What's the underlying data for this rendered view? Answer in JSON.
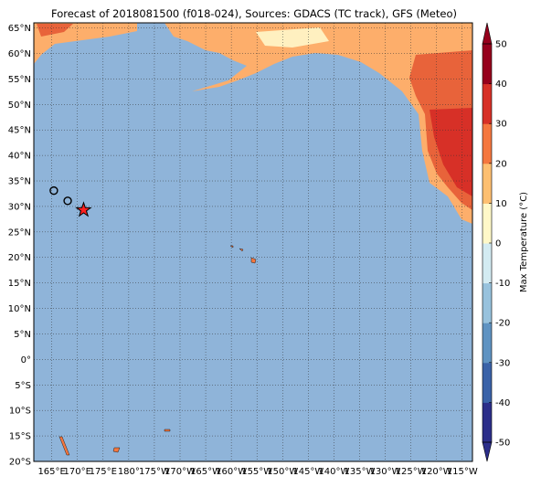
{
  "title": "Forecast of 2018081500 (f018-024), Sources: GDACS (TC track), GFS (Meteo)",
  "map": {
    "xlim": [
      161.5,
      247
    ],
    "ylim": [
      -20,
      66
    ],
    "lat_ticks": [
      {
        "value": 65,
        "label": "65°N"
      },
      {
        "value": 60,
        "label": "60°N"
      },
      {
        "value": 55,
        "label": "55°N"
      },
      {
        "value": 50,
        "label": "50°N"
      },
      {
        "value": 45,
        "label": "45°N"
      },
      {
        "value": 40,
        "label": "40°N"
      },
      {
        "value": 35,
        "label": "35°N"
      },
      {
        "value": 30,
        "label": "30°N"
      },
      {
        "value": 25,
        "label": "25°N"
      },
      {
        "value": 20,
        "label": "20°N"
      },
      {
        "value": 15,
        "label": "15°N"
      },
      {
        "value": 10,
        "label": "10°N"
      },
      {
        "value": 5,
        "label": "5°N"
      },
      {
        "value": 0,
        "label": "0°"
      },
      {
        "value": -5,
        "label": "5°S"
      },
      {
        "value": -10,
        "label": "10°S"
      },
      {
        "value": -15,
        "label": "15°S"
      },
      {
        "value": -20,
        "label": "20°S"
      }
    ],
    "lon_ticks": [
      {
        "value": 165,
        "label": "165°E"
      },
      {
        "value": 170,
        "label": "170°E"
      },
      {
        "value": 175,
        "label": "175°E"
      },
      {
        "value": 180,
        "label": "180°"
      },
      {
        "value": 185,
        "label": "175°W"
      },
      {
        "value": 190,
        "label": "170°W"
      },
      {
        "value": 195,
        "label": "165°W"
      },
      {
        "value": 200,
        "label": "160°W"
      },
      {
        "value": 205,
        "label": "155°W"
      },
      {
        "value": 210,
        "label": "150°W"
      },
      {
        "value": 215,
        "label": "145°W"
      },
      {
        "value": 220,
        "label": "140°W"
      },
      {
        "value": 225,
        "label": "135°W"
      },
      {
        "value": 230,
        "label": "130°W"
      },
      {
        "value": 235,
        "label": "125°W"
      },
      {
        "value": 240,
        "label": "120°W"
      },
      {
        "value": 245,
        "label": "115°W"
      }
    ],
    "track": {
      "lon": [
        165.4,
        168.1,
        171.2
      ],
      "lat": [
        33.1,
        31.1,
        29.3
      ]
    }
  },
  "colorbar": {
    "label": "Max Temperature (°C)",
    "lim": [
      -50,
      50
    ],
    "ticks": [
      50,
      40,
      30,
      20,
      10,
      0,
      -10,
      -20,
      -30,
      -40,
      -50
    ],
    "colors": [
      "#2c2e8a",
      "#3a62a8",
      "#5f93c2",
      "#98c2dd",
      "#d3ebf2",
      "#fff8c8",
      "#fdbf71",
      "#f4773f",
      "#d73027",
      "#96001c"
    ]
  }
}
